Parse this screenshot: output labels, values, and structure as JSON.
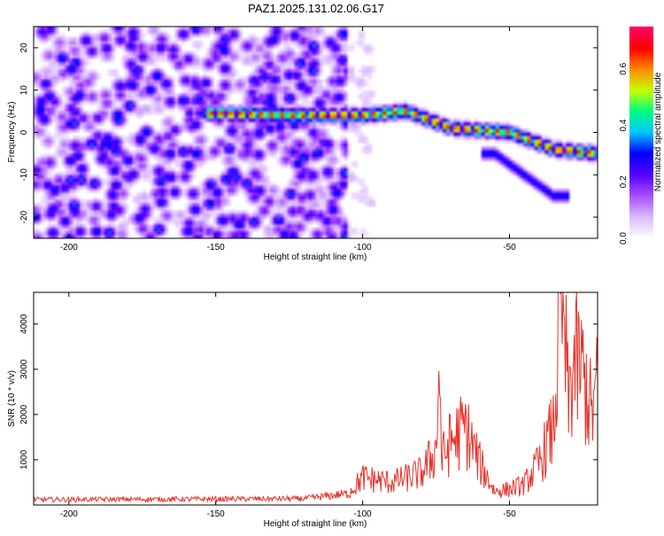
{
  "title": "PAZ1.2025.131.02.06.G17",
  "colors": {
    "snr_line": "#e8322a",
    "frame": "#000000",
    "spectrogram_palette": [
      "#ffffff",
      "#d9b8ff",
      "#a64dff",
      "#5500ff",
      "#0000ff",
      "#00c8ff",
      "#00ff80",
      "#c8ff00",
      "#ff8c00",
      "#ff0000",
      "#ff0066"
    ]
  },
  "chart_data": [
    {
      "type": "heatmap",
      "title": "PAZ1.2025.131.02.06.G17",
      "xlabel": "Height of straight line (km)",
      "ylabel": "Frequency (Hz)",
      "xlim": [
        -212,
        -20
      ],
      "ylim": [
        -25,
        25
      ],
      "x_ticks": [
        -200,
        -150,
        -100,
        -50
      ],
      "y_ticks": [
        -20,
        -10,
        0,
        10,
        20
      ],
      "colorbar": {
        "label": "Normalized spectral amplitude",
        "range": [
          0.0,
          0.75
        ],
        "ticks": [
          0.0,
          0.2,
          0.4,
          0.6
        ]
      },
      "ridge": {
        "description_points_x": [
          -212,
          -150,
          -120,
          -100,
          -85,
          -70,
          -50,
          -35,
          -20
        ],
        "description_points_freq": [
          5,
          4.5,
          4,
          4,
          5,
          1,
          0,
          -4,
          -5
        ],
        "peak_amplitude": 0.7
      },
      "branch": {
        "x": [
          -55,
          -45,
          -35
        ],
        "freq": [
          -5,
          -10,
          -15
        ]
      },
      "noise_region_x": [
        -212,
        -105
      ],
      "grid": false
    },
    {
      "type": "line",
      "xlabel": "Height of straight line (km)",
      "ylabel": "SNR (10 * v/v)",
      "xlim": [
        -212,
        -20
      ],
      "ylim": [
        0,
        4700
      ],
      "x_ticks": [
        -200,
        -150,
        -100,
        -50
      ],
      "y_ticks": [
        1000,
        2000,
        3000,
        4000
      ],
      "series": [
        {
          "key_x": [
            -212,
            -150,
            -120,
            -105,
            -100,
            -90,
            -80,
            -75,
            -74,
            -73,
            -70,
            -65,
            -60,
            -55,
            -50,
            -45,
            -40,
            -35,
            -32,
            -30,
            -28,
            -25,
            -22,
            -20
          ],
          "key_y": [
            120,
            130,
            140,
            250,
            600,
            500,
            700,
            1200,
            3000,
            1000,
            1400,
            1700,
            900,
            300,
            350,
            450,
            900,
            1700,
            4700,
            2200,
            3200,
            2900,
            2000,
            2600
          ]
        }
      ],
      "grid": false
    }
  ]
}
